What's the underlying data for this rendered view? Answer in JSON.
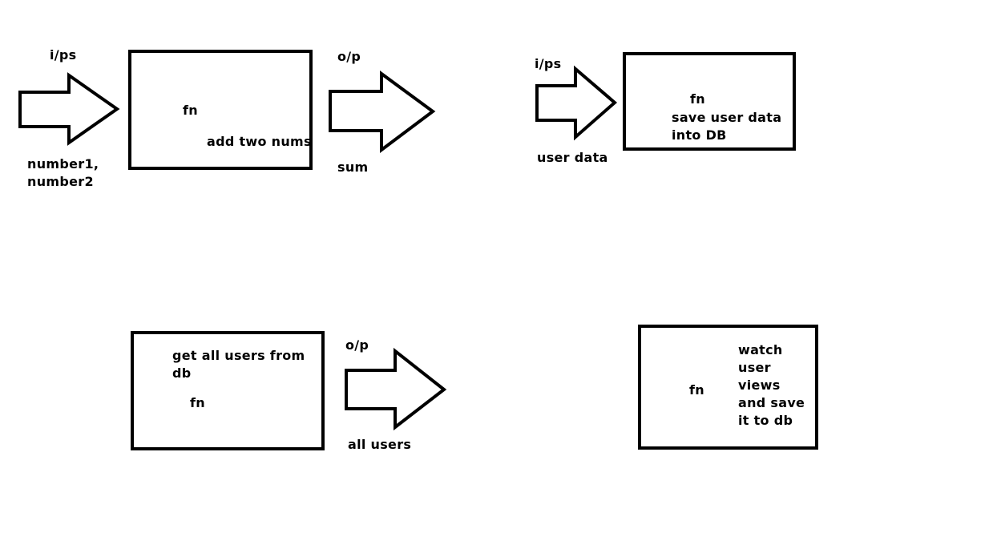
{
  "colors": {
    "background": "#ffffff",
    "stroke": "#000000"
  },
  "diagram1": {
    "input_label": "i/ps",
    "inputs_line1": "number1,",
    "inputs_line2": "number2",
    "fn_label": "fn",
    "fn_description": "add two nums",
    "output_label": "o/p",
    "output_value": "sum"
  },
  "diagram2": {
    "input_label": "i/ps",
    "input_value": "user data",
    "fn_label": "fn",
    "fn_description_line1": "save user data",
    "fn_description_line2": "into DB"
  },
  "diagram3": {
    "fn_description_line1": "get all users from",
    "fn_description_line2": "db",
    "fn_label": "fn",
    "output_label": "o/p",
    "output_value": "all users"
  },
  "diagram4": {
    "fn_label": "fn",
    "fn_description_lines": [
      "watch",
      "user",
      "views",
      "and save",
      "it to db"
    ]
  }
}
